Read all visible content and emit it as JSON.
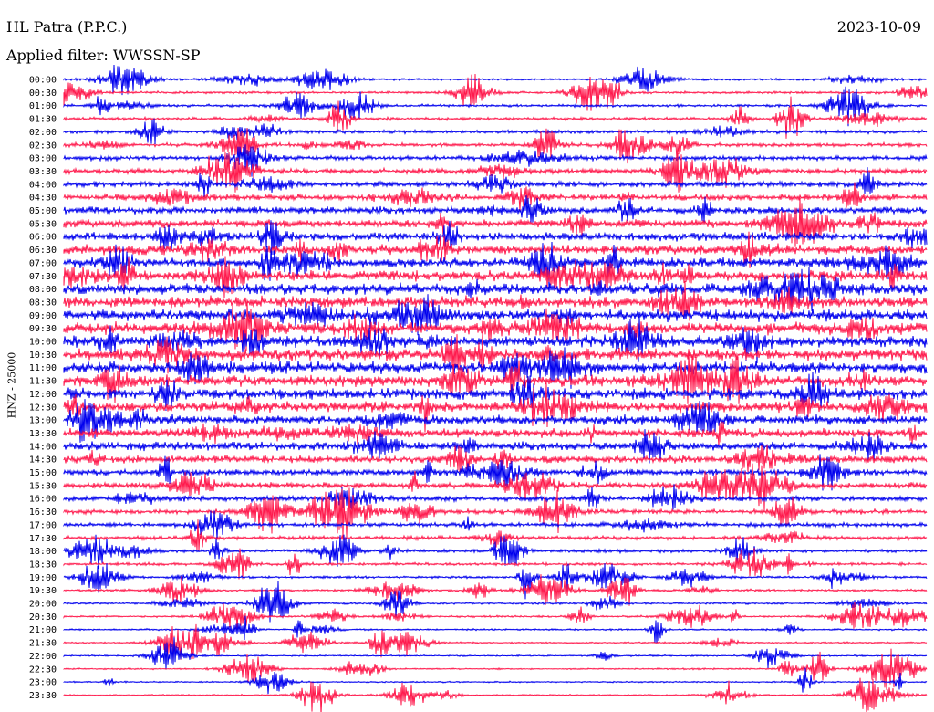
{
  "header": {
    "station": "HL Patra (P.P.C.)",
    "filter": "Applied filter: WWSSN-SP",
    "date": "2023-10-09"
  },
  "chart_data": {
    "type": "line",
    "title": "HL Patra (P.P.C.)",
    "ylabel": "HNZ - 25000",
    "rows": [
      "00:00",
      "00:30",
      "01:00",
      "01:30",
      "02:00",
      "02:30",
      "03:00",
      "03:30",
      "04:00",
      "04:30",
      "05:00",
      "05:30",
      "06:00",
      "06:30",
      "07:00",
      "07:30",
      "08:00",
      "08:30",
      "09:00",
      "09:30",
      "10:00",
      "10:30",
      "11:00",
      "11:30",
      "12:00",
      "12:30",
      "13:00",
      "13:30",
      "14:00",
      "14:30",
      "15:00",
      "15:30",
      "16:00",
      "16:30",
      "17:00",
      "17:30",
      "18:00",
      "18:30",
      "19:00",
      "19:30",
      "20:00",
      "20:30",
      "21:00",
      "21:30",
      "22:00",
      "22:30",
      "23:00",
      "23:30"
    ],
    "colors": [
      "#0000ee",
      "#ff1a4d"
    ],
    "grid": false
  }
}
